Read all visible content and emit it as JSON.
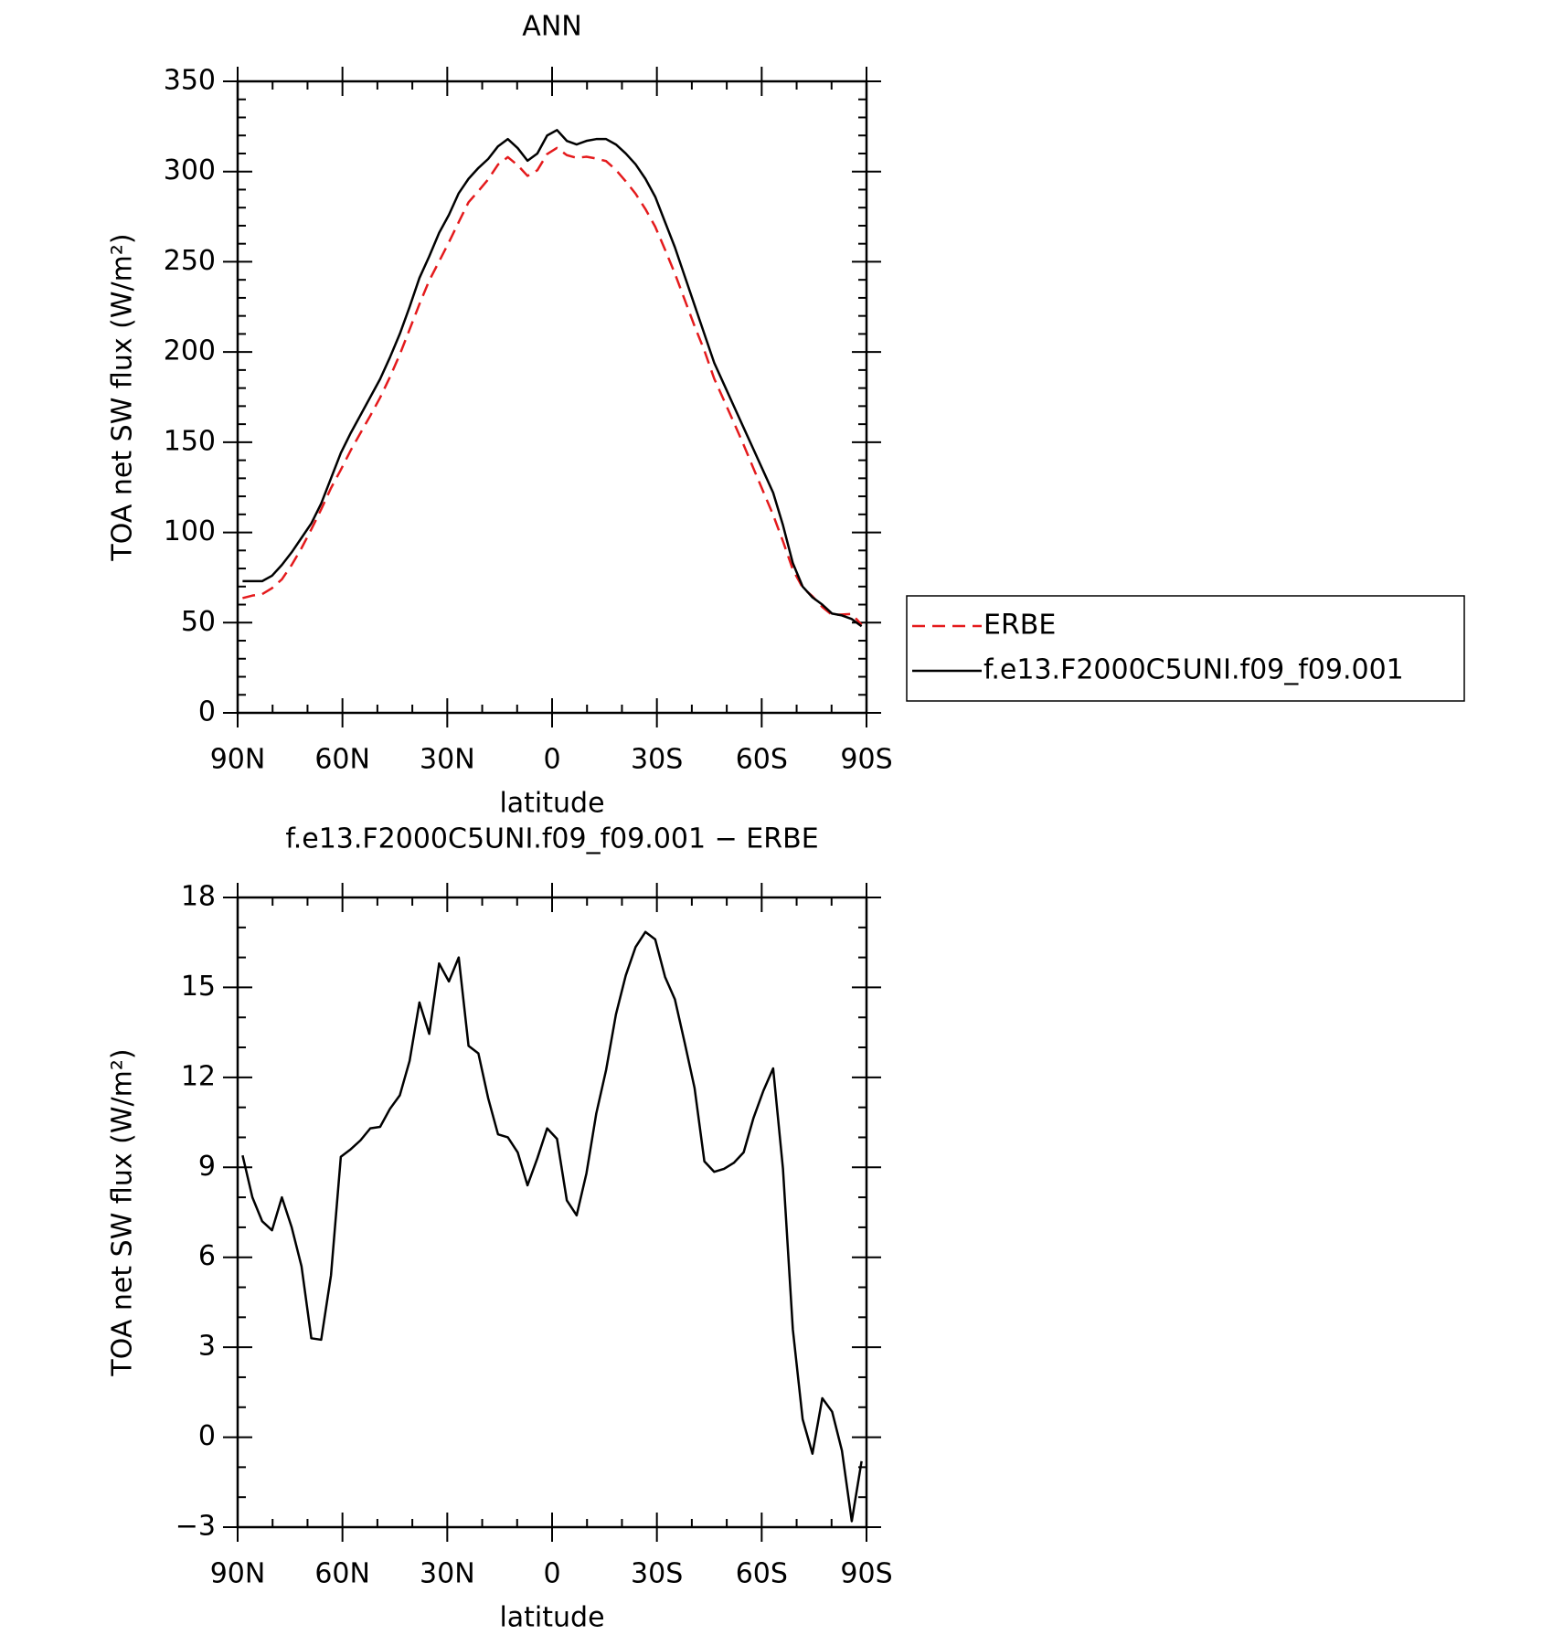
{
  "chart_data": [
    {
      "type": "line",
      "title": "ANN",
      "x": [
        88.59,
        85.78,
        82.97,
        80.16,
        77.34,
        74.53,
        71.72,
        68.91,
        66.09,
        63.28,
        60.47,
        57.66,
        54.84,
        52.03,
        49.22,
        46.41,
        43.59,
        40.78,
        37.97,
        35.16,
        32.34,
        29.53,
        26.72,
        23.91,
        21.09,
        18.28,
        15.47,
        12.66,
        9.84,
        7.03,
        4.22,
        1.41,
        -1.41,
        -4.22,
        -7.03,
        -9.84,
        -12.66,
        -15.47,
        -18.28,
        -21.09,
        -23.91,
        -26.72,
        -29.53,
        -32.34,
        -35.16,
        -37.97,
        -40.78,
        -43.59,
        -46.41,
        -49.22,
        -52.03,
        -54.84,
        -57.66,
        -60.47,
        -63.28,
        -66.09,
        -68.91,
        -71.72,
        -74.53,
        -77.34,
        -80.16,
        -82.97,
        -85.78,
        -88.59
      ],
      "series": [
        {
          "name": "ERBE",
          "color": "#e41a1c",
          "dash": true,
          "values": [
            63.6,
            65.0,
            65.8,
            69.1,
            74.0,
            82.0,
            91.3,
            101.7,
            112.8,
            124.6,
            134.7,
            145.4,
            155.1,
            164.7,
            174.7,
            186.1,
            198.6,
            212.5,
            226.5,
            239.6,
            250.2,
            260.8,
            272.0,
            283.0,
            289.2,
            295.7,
            303.9,
            308.0,
            303.5,
            297.6,
            300.7,
            309.7,
            313.1,
            309.1,
            307.6,
            308.2,
            307.2,
            305.8,
            300.9,
            294.6,
            287.7,
            279.2,
            269.4,
            256.7,
            243.4,
            228.9,
            214.4,
            200.8,
            185.2,
            173.1,
            160.9,
            148.5,
            135.4,
            122.5,
            109.7,
            95.1,
            79.4,
            69.4,
            64.6,
            58.7,
            54.2,
            54.5,
            54.8,
            48.8
          ]
        },
        {
          "name": "f.e13.F2000C5UNI.f09_f09.001",
          "color": "#000000",
          "dash": false,
          "values": [
            73,
            73,
            73,
            76,
            82,
            89,
            97,
            105,
            116,
            130,
            144,
            155,
            165,
            175,
            185,
            197,
            210,
            225,
            241,
            253,
            266,
            276,
            288,
            296,
            302,
            307,
            314,
            318,
            313,
            306,
            310,
            320,
            323,
            317,
            315,
            317,
            318,
            318,
            315,
            310,
            304,
            296,
            286,
            272,
            258,
            242,
            226,
            210,
            194,
            182,
            170,
            158,
            146,
            134,
            122,
            104,
            83,
            70,
            64,
            60,
            55,
            54,
            52,
            48
          ]
        }
      ],
      "xlim": [
        90,
        -90
      ],
      "xticks": [
        {
          "value": 90,
          "label": "90N"
        },
        {
          "value": 60,
          "label": "60N"
        },
        {
          "value": 30,
          "label": "30N"
        },
        0,
        {
          "value": -30,
          "label": "30S"
        },
        {
          "value": -60,
          "label": "60S"
        },
        {
          "value": -90,
          "label": "90S"
        }
      ],
      "ylim": [
        0,
        350
      ],
      "yticks": [
        0,
        50,
        100,
        150,
        200,
        250,
        300,
        350
      ],
      "xlabel": "latitude",
      "ylabel": "TOA net SW flux (W/m²)",
      "legend": "right"
    },
    {
      "type": "line",
      "title": "f.e13.F2000C5UNI.f09_f09.001 − ERBE",
      "x": [
        88.59,
        85.78,
        82.97,
        80.16,
        77.34,
        74.53,
        71.72,
        68.91,
        66.09,
        63.28,
        60.47,
        57.66,
        54.84,
        52.03,
        49.22,
        46.41,
        43.59,
        40.78,
        37.97,
        35.16,
        32.34,
        29.53,
        26.72,
        23.91,
        21.09,
        18.28,
        15.47,
        12.66,
        9.84,
        7.03,
        4.22,
        1.41,
        -1.41,
        -4.22,
        -7.03,
        -9.84,
        -12.66,
        -15.47,
        -18.28,
        -21.09,
        -23.91,
        -26.72,
        -29.53,
        -32.34,
        -35.16,
        -37.97,
        -40.78,
        -43.59,
        -46.41,
        -49.22,
        -52.03,
        -54.84,
        -57.66,
        -60.47,
        -63.28,
        -66.09,
        -68.91,
        -71.72,
        -74.53,
        -77.34,
        -80.16,
        -82.97,
        -85.78,
        -88.59
      ],
      "values": [
        9.4,
        8.0,
        7.2,
        6.9,
        8.0,
        7.0,
        5.7,
        3.3,
        3.25,
        5.4,
        9.35,
        9.6,
        9.9,
        10.3,
        10.35,
        10.95,
        11.4,
        12.55,
        14.5,
        13.45,
        15.8,
        15.2,
        16.0,
        13.05,
        12.8,
        11.3,
        10.1,
        10.0,
        9.5,
        8.4,
        9.3,
        10.3,
        9.95,
        7.9,
        7.4,
        8.8,
        10.8,
        12.25,
        14.1,
        15.4,
        16.35,
        16.85,
        16.6,
        15.35,
        14.6,
        13.15,
        11.65,
        9.2,
        8.85,
        8.95,
        9.15,
        9.5,
        10.65,
        11.55,
        12.3,
        8.95,
        3.6,
        0.6,
        -0.55,
        1.3,
        0.85,
        -0.45,
        -2.8,
        -0.8
      ],
      "color": "#000000",
      "xlim": [
        90,
        -90
      ],
      "xticks": [
        {
          "value": 90,
          "label": "90N"
        },
        {
          "value": 60,
          "label": "60N"
        },
        {
          "value": 30,
          "label": "30N"
        },
        0,
        {
          "value": -30,
          "label": "30S"
        },
        {
          "value": -60,
          "label": "60S"
        },
        {
          "value": -90,
          "label": "90S"
        }
      ],
      "ylim": [
        -3,
        18
      ],
      "yticks": [
        {
          "value": -3,
          "label": "−3"
        },
        0,
        3,
        6,
        9,
        12,
        15,
        18
      ],
      "xlabel": "latitude",
      "ylabel": "TOA net SW flux (W/m²)"
    }
  ]
}
